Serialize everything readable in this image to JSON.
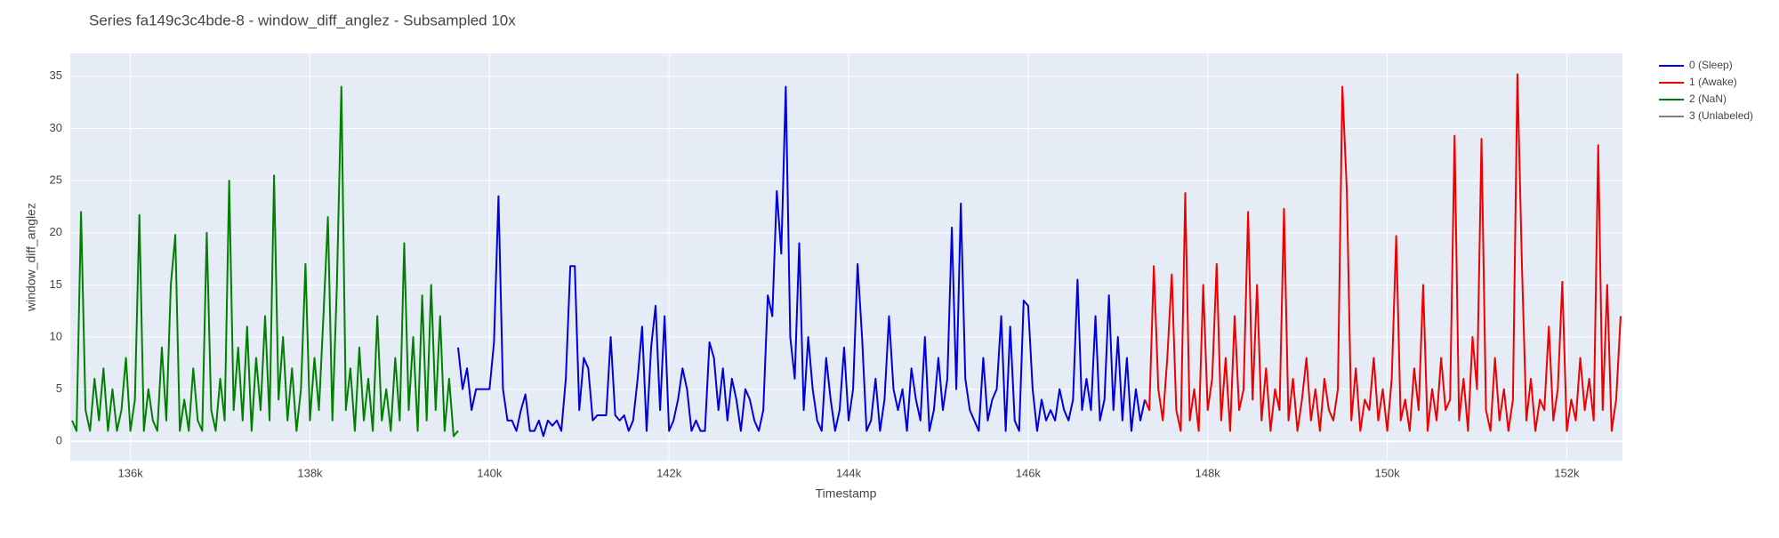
{
  "chart_data": {
    "type": "line",
    "title": "Series fa149c3c4bde-8 - window_diff_anglez - Subsampled 10x",
    "x_label": "Timestamp",
    "y_label": "window_diff_anglez",
    "xlim": [
      135330,
      152620
    ],
    "ylim": [
      -1.85,
      37.2
    ],
    "xticks": [
      {
        "value": 136000,
        "label": "136k"
      },
      {
        "value": 138000,
        "label": "138k"
      },
      {
        "value": 140000,
        "label": "140k"
      },
      {
        "value": 142000,
        "label": "142k"
      },
      {
        "value": 144000,
        "label": "144k"
      },
      {
        "value": 146000,
        "label": "146k"
      },
      {
        "value": 148000,
        "label": "148k"
      },
      {
        "value": 150000,
        "label": "150k"
      },
      {
        "value": 152000,
        "label": "152k"
      }
    ],
    "yticks": [
      0,
      5,
      10,
      15,
      20,
      25,
      30,
      35
    ],
    "grid": true,
    "legend": "right",
    "series": [
      {
        "name": "0 (Sleep)",
        "color": "#0000dd",
        "x": [
          139650,
          139700,
          139750,
          139800,
          139850,
          139900,
          139950,
          140000,
          140050,
          140100,
          140150,
          140200,
          140250,
          140300,
          140350,
          140400,
          140450,
          140500,
          140550,
          140600,
          140650,
          140700,
          140750,
          140800,
          140850,
          140900,
          140950,
          141000,
          141050,
          141100,
          141150,
          141200,
          141250,
          141300,
          141350,
          141400,
          141450,
          141500,
          141550,
          141600,
          141650,
          141700,
          141750,
          141800,
          141850,
          141900,
          141950,
          142000,
          142050,
          142100,
          142150,
          142200,
          142250,
          142300,
          142350,
          142400,
          142450,
          142500,
          142550,
          142600,
          142650,
          142700,
          142750,
          142800,
          142850,
          142900,
          142950,
          143000,
          143050,
          143100,
          143150,
          143200,
          143250,
          143300,
          143350,
          143400,
          143450,
          143500,
          143550,
          143600,
          143650,
          143700,
          143750,
          143800,
          143850,
          143900,
          143950,
          144000,
          144050,
          144100,
          144150,
          144200,
          144250,
          144300,
          144350,
          144400,
          144450,
          144500,
          144550,
          144600,
          144650,
          144700,
          144750,
          144800,
          144850,
          144900,
          144950,
          145000,
          145050,
          145100,
          145150,
          145200,
          145250,
          145300,
          145350,
          145400,
          145450,
          145500,
          145550,
          145600,
          145650,
          145700,
          145750,
          145800,
          145850,
          145900,
          145950,
          146000,
          146050,
          146100,
          146150,
          146200,
          146250,
          146300,
          146350,
          146400,
          146450,
          146500,
          146550,
          146600,
          146650,
          146700,
          146750,
          146800,
          146850,
          146900,
          146950,
          147000,
          147050,
          147100,
          147150,
          147200,
          147250,
          147300
        ],
        "values": [
          9,
          5,
          7,
          3,
          5,
          5,
          5,
          5,
          9.5,
          23.5,
          5,
          2,
          2,
          1,
          3,
          4.5,
          1,
          1,
          2,
          0.5,
          2,
          1.5,
          2,
          1,
          6,
          16.8,
          16.8,
          3,
          8,
          7,
          2,
          2.5,
          2.5,
          2.5,
          10,
          2.5,
          2,
          2.5,
          1,
          2,
          6,
          11,
          1,
          9,
          13,
          3,
          12,
          1,
          2,
          4,
          7,
          5,
          1,
          2,
          1,
          1,
          9.5,
          8,
          3,
          7,
          2,
          6,
          4,
          1,
          5,
          4,
          2,
          1,
          3,
          14,
          12,
          24,
          18,
          34,
          10,
          6,
          19,
          3,
          10,
          5,
          2,
          1,
          8,
          4,
          1,
          3,
          9,
          2,
          5,
          17,
          10,
          1,
          2,
          6,
          1,
          4,
          12,
          5,
          3,
          5,
          1,
          7,
          4,
          2,
          10,
          1,
          3,
          8,
          3,
          6,
          20.5,
          5,
          22.8,
          6,
          3,
          2,
          1,
          8,
          2,
          4,
          5,
          12,
          1,
          11,
          2,
          1,
          13.5,
          13,
          5,
          1,
          4,
          2,
          3,
          2,
          5,
          3,
          2,
          4,
          15.5,
          3,
          6,
          3,
          12,
          2,
          4,
          14,
          3,
          10,
          2,
          8,
          1,
          5,
          2,
          4
        ]
      },
      {
        "name": "1 (Awake)",
        "color": "#ee0000",
        "x": [
          147300,
          147350,
          147400,
          147450,
          147500,
          147550,
          147600,
          147650,
          147700,
          147750,
          147800,
          147850,
          147900,
          147950,
          148000,
          148050,
          148100,
          148150,
          148200,
          148250,
          148300,
          148350,
          148400,
          148450,
          148500,
          148550,
          148600,
          148650,
          148700,
          148750,
          148800,
          148850,
          148900,
          148950,
          149000,
          149050,
          149100,
          149150,
          149200,
          149250,
          149300,
          149350,
          149400,
          149450,
          149500,
          149550,
          149600,
          149650,
          149700,
          149750,
          149800,
          149850,
          149900,
          149950,
          150000,
          150050,
          150100,
          150150,
          150200,
          150250,
          150300,
          150350,
          150400,
          150450,
          150500,
          150550,
          150600,
          150650,
          150700,
          150750,
          150800,
          150850,
          150900,
          150950,
          151000,
          151050,
          151100,
          151150,
          151200,
          151250,
          151300,
          151350,
          151400,
          151450,
          151500,
          151550,
          151600,
          151650,
          151700,
          151750,
          151800,
          151850,
          151900,
          151950,
          152000,
          152050,
          152100,
          152150,
          152200,
          152250,
          152300,
          152350,
          152400,
          152450,
          152500,
          152550,
          152600
        ],
        "values": [
          4,
          3,
          16.8,
          5,
          2,
          8,
          16,
          3,
          1,
          23.8,
          2,
          5,
          1,
          15,
          3,
          6,
          17,
          2,
          8,
          1,
          12,
          3,
          5,
          22,
          4,
          15,
          2,
          7,
          1,
          5,
          3,
          22.3,
          2,
          6,
          1,
          4,
          8,
          2,
          5,
          1,
          6,
          3,
          2,
          5,
          34,
          24,
          2,
          7,
          1,
          4,
          3,
          8,
          2,
          5,
          1,
          6,
          19.7,
          2,
          4,
          1,
          7,
          3,
          15,
          1,
          5,
          2,
          8,
          3,
          4,
          29.3,
          2,
          6,
          1,
          10,
          5,
          29,
          3,
          1,
          8,
          2,
          5,
          1,
          4,
          35.2,
          17,
          2,
          6,
          1,
          4,
          3,
          11,
          2,
          5,
          15.3,
          1,
          4,
          2,
          8,
          3,
          6,
          2,
          28.4,
          3,
          15,
          1,
          4,
          12
        ]
      },
      {
        "name": "2 (NaN)",
        "color": "#008000",
        "x": [
          135350,
          135400,
          135450,
          135500,
          135550,
          135600,
          135650,
          135700,
          135750,
          135800,
          135850,
          135900,
          135950,
          136000,
          136050,
          136100,
          136150,
          136200,
          136250,
          136300,
          136350,
          136400,
          136450,
          136500,
          136550,
          136600,
          136650,
          136700,
          136750,
          136800,
          136850,
          136900,
          136950,
          137000,
          137050,
          137100,
          137150,
          137200,
          137250,
          137300,
          137350,
          137400,
          137450,
          137500,
          137550,
          137600,
          137650,
          137700,
          137750,
          137800,
          137850,
          137900,
          137950,
          138000,
          138050,
          138100,
          138150,
          138200,
          138250,
          138300,
          138350,
          138400,
          138450,
          138500,
          138550,
          138600,
          138650,
          138700,
          138750,
          138800,
          138850,
          138900,
          138950,
          139000,
          139050,
          139100,
          139150,
          139200,
          139250,
          139300,
          139350,
          139400,
          139450,
          139500,
          139550,
          139600,
          139650
        ],
        "values": [
          2,
          1,
          22,
          3,
          1,
          6,
          2,
          7,
          1,
          5,
          1,
          3,
          8,
          1,
          4,
          21.7,
          1,
          5,
          2,
          1,
          9,
          2,
          15,
          19.8,
          1,
          4,
          1,
          7,
          2,
          1,
          20,
          3,
          1,
          6,
          2,
          25,
          3,
          9,
          2,
          11,
          1,
          8,
          3,
          12,
          2,
          25.5,
          4,
          10,
          2,
          7,
          1,
          5,
          17,
          2,
          8,
          3,
          12,
          21.5,
          2,
          15,
          34,
          3,
          7,
          1,
          9,
          2,
          6,
          1,
          12,
          2,
          5,
          1,
          8,
          2,
          19,
          3,
          10,
          1,
          14,
          2,
          15,
          3,
          12,
          1,
          6,
          0.5,
          1
        ]
      },
      {
        "name": "3 (Unlabeled)",
        "color": "#808080",
        "x": [],
        "values": []
      }
    ]
  }
}
